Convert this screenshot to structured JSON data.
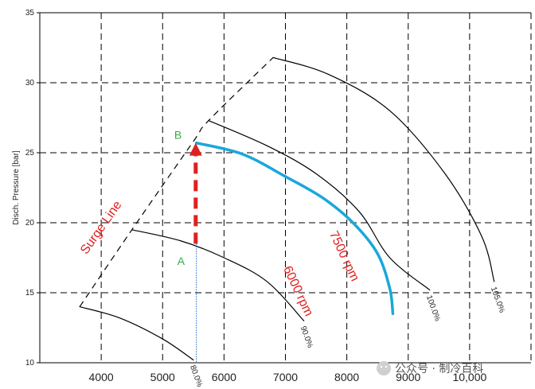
{
  "chart_data": {
    "type": "line",
    "ylabel": "Disch. Pressure [bar]",
    "xlabel": "",
    "xlim": [
      3000,
      11000
    ],
    "ylim": [
      10,
      35
    ],
    "x_ticks": [
      4000,
      5000,
      6000,
      7000,
      8000,
      9000,
      10000
    ],
    "x_tick_labels": [
      "4000",
      "5000",
      "6000",
      "7000",
      "8000",
      "9000",
      "10,000"
    ],
    "y_ticks": [
      10,
      15,
      20,
      25,
      30,
      35
    ],
    "y_tick_labels": [
      "10",
      "15",
      "20",
      "25",
      "30",
      "35"
    ],
    "grid": true,
    "surge_line": {
      "label": "Surge Line",
      "points": [
        [
          3650,
          14.0
        ],
        [
          4500,
          19.5
        ],
        [
          5500,
          25.8
        ],
        [
          5750,
          27.3
        ],
        [
          6800,
          31.8
        ]
      ]
    },
    "series": [
      {
        "name": "80.0%",
        "color": "#000000",
        "points": [
          [
            3650,
            14.0
          ],
          [
            4300,
            13.2
          ],
          [
            5000,
            11.7
          ],
          [
            5500,
            10.2
          ]
        ]
      },
      {
        "name": "90.0%",
        "color": "#000000",
        "points": [
          [
            4500,
            19.5
          ],
          [
            5300,
            18.7
          ],
          [
            6000,
            17.5
          ],
          [
            6700,
            15.8
          ],
          [
            7300,
            13.0
          ]
        ]
      },
      {
        "name": "100.0%",
        "color": "#000000",
        "points": [
          [
            5750,
            27.3
          ],
          [
            6700,
            25.5
          ],
          [
            7500,
            23.5
          ],
          [
            8200,
            20.8
          ],
          [
            8700,
            17.5
          ],
          [
            9350,
            15.2
          ]
        ]
      },
      {
        "name": "105.0%",
        "color": "#000000",
        "points": [
          [
            6800,
            31.8
          ],
          [
            7700,
            30.6
          ],
          [
            8700,
            28.0
          ],
          [
            9600,
            23.5
          ],
          [
            10200,
            19.0
          ],
          [
            10400,
            15.8
          ]
        ]
      },
      {
        "name": "7500 rpm",
        "color": "#1aa7dc",
        "points": [
          [
            5550,
            25.7
          ],
          [
            6300,
            24.9
          ],
          [
            7000,
            23.3
          ],
          [
            7600,
            21.8
          ],
          [
            8100,
            20.0
          ],
          [
            8500,
            17.8
          ],
          [
            8700,
            15.3
          ],
          [
            8750,
            13.5
          ]
        ]
      }
    ],
    "arrow": {
      "from": [
        5500,
        18.5
      ],
      "to": [
        5500,
        25.7
      ],
      "color": "#e02020"
    },
    "vline": {
      "x": 5550,
      "y_from": 18.5,
      "y_to": 10,
      "color": "#1565c0"
    },
    "points_labels": [
      {
        "text": "A",
        "x": 5300,
        "y": 17.0
      },
      {
        "text": "B",
        "x": 5250,
        "y": 26.0
      }
    ],
    "annotations": [
      {
        "text": "7500 rpm",
        "x": 7900,
        "y": 17.5,
        "angle": 65
      },
      {
        "text": "6000 rpm",
        "x": 7150,
        "y": 15.0,
        "angle": 65
      },
      {
        "text": "Surge Line",
        "x": 4050,
        "y": 19.5,
        "angle": -55
      }
    ]
  },
  "watermark": "公众号 · 制冷百科"
}
